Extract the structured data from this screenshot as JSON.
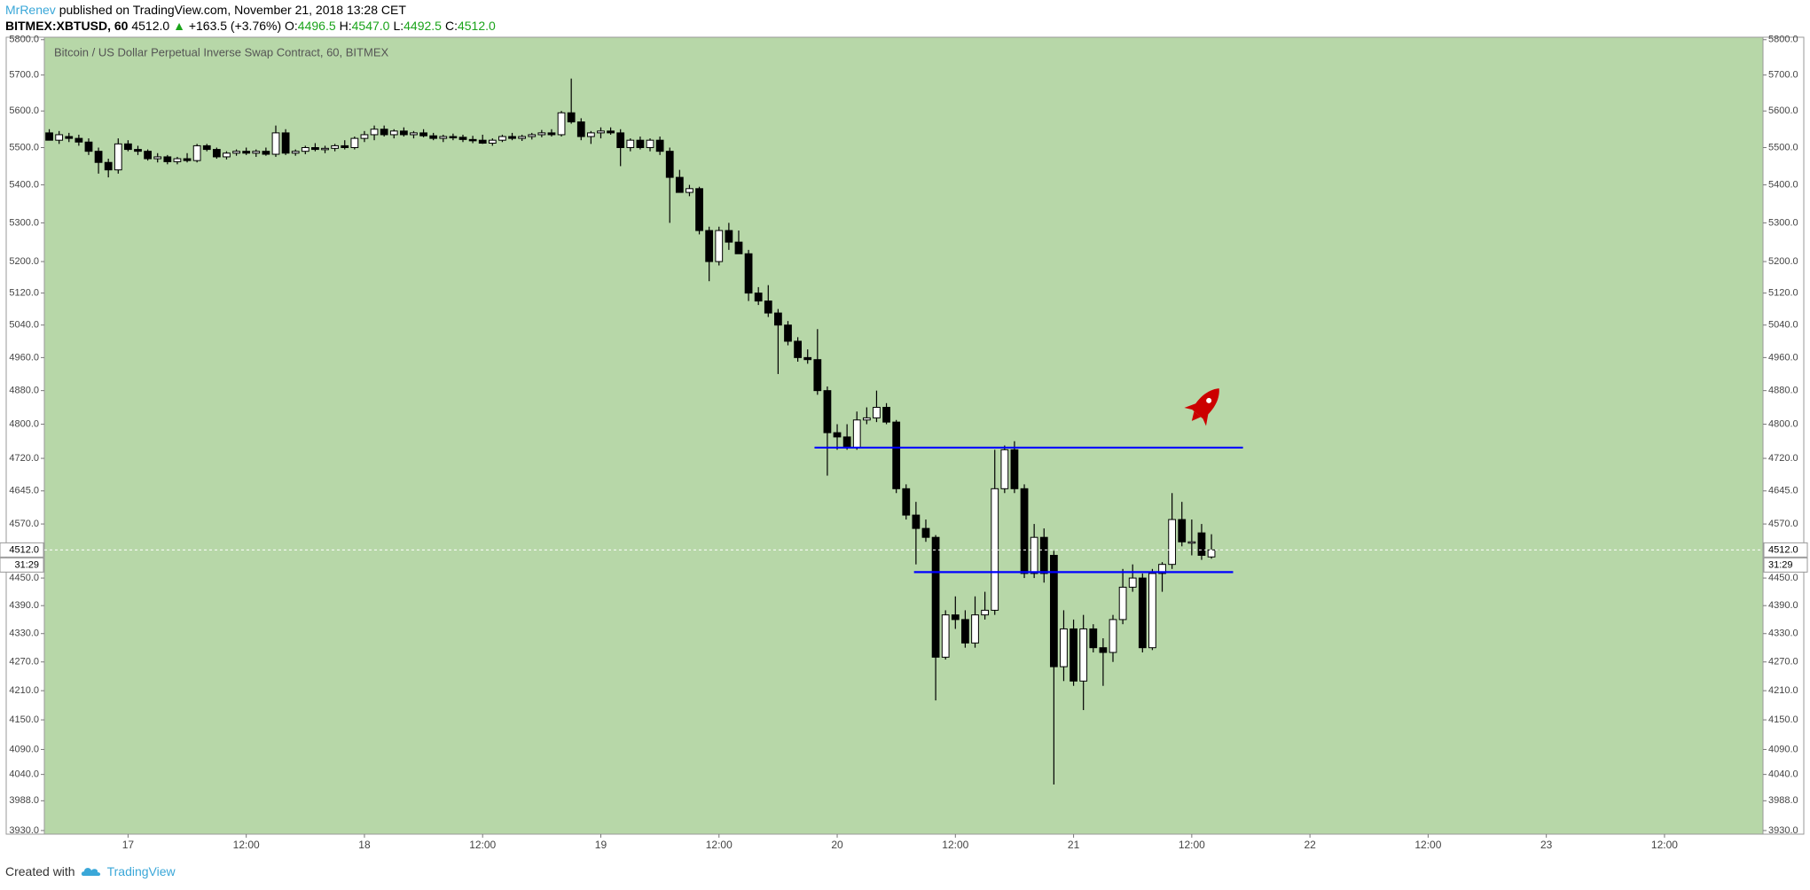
{
  "header": {
    "author": "MrRenev",
    "published": "published on TradingView.com, November 21, 2018 13:28 CET",
    "symbol": "BITMEX:XBTUSD, 60",
    "last": "4512.0",
    "arrow": "▲",
    "change": "+163.5 (+3.76%)",
    "ohlc": [
      {
        "key": "O:",
        "value": "4496.5"
      },
      {
        "key": "H:",
        "value": "4547.0"
      },
      {
        "key": "L:",
        "value": "4492.5"
      },
      {
        "key": "C:",
        "value": "4512.0"
      }
    ]
  },
  "footer": {
    "created": "Created with",
    "brand": "TradingView"
  },
  "chart_data": {
    "type": "candlestick",
    "title": "Bitcoin / US Dollar Perpetual Inverse Swap Contract, 60, BITMEX",
    "background": "#b7d7a8",
    "up_color": "#ffffff",
    "down_color": "#000000",
    "wick_color": "#000000",
    "log_scale": true,
    "grid": false,
    "ylim": [
      3923,
      5807
    ],
    "yticks": [
      {
        "value": 5800,
        "label": "5800.0"
      },
      {
        "value": 5700,
        "label": "5700.0"
      },
      {
        "value": 5600,
        "label": "5600.0"
      },
      {
        "value": 5500,
        "label": "5500.0"
      },
      {
        "value": 5400,
        "label": "5400.0"
      },
      {
        "value": 5300,
        "label": "5300.0"
      },
      {
        "value": 5200,
        "label": "5200.0"
      },
      {
        "value": 5120,
        "label": "5120.0"
      },
      {
        "value": 5040,
        "label": "5040.0"
      },
      {
        "value": 4960,
        "label": "4960.0"
      },
      {
        "value": 4880,
        "label": "4880.0"
      },
      {
        "value": 4800,
        "label": "4800.0"
      },
      {
        "value": 4720,
        "label": "4720.0"
      },
      {
        "value": 4645,
        "label": "4645.0"
      },
      {
        "value": 4570,
        "label": "4570.0"
      },
      {
        "value": 4450,
        "label": "4450.0"
      },
      {
        "value": 4390,
        "label": "4390.0"
      },
      {
        "value": 4330,
        "label": "4330.0"
      },
      {
        "value": 4270,
        "label": "4270.0"
      },
      {
        "value": 4210,
        "label": "4210.0"
      },
      {
        "value": 4150,
        "label": "4150.0"
      },
      {
        "value": 4090,
        "label": "4090.0"
      },
      {
        "value": 4040,
        "label": "4040.0"
      },
      {
        "value": 3988,
        "label": "3988.0"
      },
      {
        "value": 3930,
        "label": "3930.0"
      }
    ],
    "xlim": [
      -0.5,
      174
    ],
    "xticks": [
      {
        "value": 8,
        "label": "17"
      },
      {
        "value": 20,
        "label": "12:00"
      },
      {
        "value": 32,
        "label": "18"
      },
      {
        "value": 44,
        "label": "12:00"
      },
      {
        "value": 56,
        "label": "19"
      },
      {
        "value": 68,
        "label": "12:00"
      },
      {
        "value": 80,
        "label": "20"
      },
      {
        "value": 92,
        "label": "12:00"
      },
      {
        "value": 104,
        "label": "21"
      },
      {
        "value": 116,
        "label": "12:00"
      },
      {
        "value": 128,
        "label": "22"
      },
      {
        "value": 140,
        "label": "12:00"
      },
      {
        "value": 152,
        "label": "23"
      },
      {
        "value": 164,
        "label": "12:00"
      }
    ],
    "open": [
      5540,
      5520,
      5530,
      5525,
      5515,
      5490,
      5460,
      5440,
      5510,
      5495,
      5490,
      5470,
      5475,
      5462,
      5470,
      5465,
      5505,
      5495,
      5475,
      5485,
      5490,
      5485,
      5490,
      5482,
      5540,
      5485,
      5490,
      5500,
      5495,
      5498,
      5505,
      5500,
      5525,
      5535,
      5550,
      5535,
      5545,
      5535,
      5540,
      5532,
      5525,
      5530,
      5528,
      5522,
      5520,
      5512,
      5520,
      5530,
      5525,
      5530,
      5535,
      5540,
      5535,
      5595,
      5570,
      5530,
      5540,
      5545,
      5540,
      5500,
      5520,
      5500,
      5520,
      5490,
      5420,
      5380,
      5390,
      5280,
      5200,
      5280,
      5250,
      5220,
      5120,
      5100,
      5070,
      5040,
      5000,
      4960,
      4955,
      4880,
      4780,
      4770,
      4745,
      4810,
      4815,
      4840,
      4805,
      4650,
      4590,
      4560,
      4540,
      4280,
      4370,
      4360,
      4310,
      4370,
      4380,
      4650,
      4740,
      4650,
      4460,
      4540,
      4500,
      4260,
      4340,
      4230,
      4340,
      4300,
      4290,
      4360,
      4430,
      4450,
      4300,
      4460,
      4480,
      4580,
      4530,
      4550,
      4496.5
    ],
    "high": [
      5550,
      5545,
      5540,
      5535,
      5525,
      5500,
      5470,
      5525,
      5520,
      5505,
      5495,
      5485,
      5480,
      5475,
      5485,
      5510,
      5510,
      5500,
      5490,
      5495,
      5500,
      5495,
      5500,
      5560,
      5550,
      5495,
      5505,
      5512,
      5505,
      5510,
      5520,
      5530,
      5545,
      5560,
      5560,
      5550,
      5555,
      5545,
      5550,
      5540,
      5535,
      5538,
      5535,
      5532,
      5535,
      5525,
      5535,
      5540,
      5535,
      5540,
      5548,
      5550,
      5600,
      5690,
      5580,
      5545,
      5555,
      5555,
      5550,
      5525,
      5530,
      5525,
      5530,
      5500,
      5440,
      5400,
      5395,
      5290,
      5290,
      5300,
      5280,
      5230,
      5135,
      5140,
      5080,
      5050,
      5010,
      4980,
      5030,
      4890,
      4800,
      4800,
      4830,
      4840,
      4880,
      4850,
      4810,
      4660,
      4620,
      4580,
      4545,
      4380,
      4410,
      4380,
      4410,
      4420,
      4740,
      4750,
      4760,
      4660,
      4570,
      4560,
      4510,
      4380,
      4360,
      4370,
      4350,
      4320,
      4370,
      4470,
      4480,
      4460,
      4470,
      4485,
      4640,
      4620,
      4580,
      4570,
      4547
    ],
    "low": [
      5520,
      5510,
      5515,
      5505,
      5480,
      5430,
      5420,
      5430,
      5490,
      5480,
      5465,
      5460,
      5455,
      5455,
      5460,
      5460,
      5490,
      5470,
      5468,
      5478,
      5480,
      5475,
      5478,
      5475,
      5480,
      5478,
      5482,
      5490,
      5485,
      5490,
      5495,
      5495,
      5515,
      5520,
      5530,
      5525,
      5530,
      5525,
      5528,
      5520,
      5515,
      5520,
      5515,
      5512,
      5510,
      5505,
      5515,
      5520,
      5518,
      5522,
      5528,
      5530,
      5530,
      5565,
      5520,
      5510,
      5525,
      5535,
      5450,
      5490,
      5495,
      5490,
      5480,
      5300,
      5380,
      5370,
      5270,
      5150,
      5190,
      5230,
      5220,
      5100,
      5090,
      5060,
      4920,
      4990,
      4950,
      4945,
      4870,
      4680,
      4740,
      4740,
      4740,
      4800,
      4805,
      4800,
      4640,
      4580,
      4480,
      4530,
      4190,
      4275,
      4340,
      4300,
      4300,
      4360,
      4370,
      4640,
      4640,
      4450,
      4450,
      4440,
      4020,
      4230,
      4220,
      4170,
      4290,
      4220,
      4270,
      4350,
      4420,
      4290,
      4295,
      4420,
      4470,
      4520,
      4500,
      4490,
      4492.5
    ],
    "close": [
      5520,
      5535,
      5525,
      5515,
      5490,
      5460,
      5440,
      5510,
      5495,
      5490,
      5470,
      5475,
      5462,
      5470,
      5465,
      5505,
      5495,
      5475,
      5485,
      5490,
      5485,
      5490,
      5482,
      5540,
      5485,
      5490,
      5500,
      5495,
      5498,
      5505,
      5500,
      5525,
      5535,
      5550,
      5535,
      5545,
      5535,
      5540,
      5532,
      5525,
      5530,
      5528,
      5522,
      5520,
      5512,
      5520,
      5530,
      5525,
      5530,
      5535,
      5540,
      5535,
      5595,
      5570,
      5530,
      5540,
      5545,
      5540,
      5500,
      5520,
      5500,
      5520,
      5490,
      5420,
      5380,
      5390,
      5280,
      5200,
      5280,
      5250,
      5220,
      5120,
      5100,
      5070,
      5040,
      5000,
      4960,
      4955,
      4880,
      4780,
      4770,
      4745,
      4810,
      4815,
      4840,
      4805,
      4650,
      4590,
      4560,
      4540,
      4280,
      4370,
      4360,
      4310,
      4370,
      4380,
      4650,
      4740,
      4650,
      4460,
      4540,
      4460,
      4260,
      4340,
      4230,
      4340,
      4300,
      4290,
      4360,
      4430,
      4450,
      4300,
      4460,
      4480,
      4580,
      4530,
      4530,
      4500,
      4512
    ],
    "levels": [
      {
        "value": 4745,
        "from": 77.7,
        "to": 121.2,
        "color": "#0000ff"
      },
      {
        "value": 4463,
        "from": 87.8,
        "to": 120.2,
        "color": "#0000ff"
      }
    ],
    "last_price": {
      "value": 4512,
      "label": "4512.0"
    },
    "countdown": "31:29"
  }
}
